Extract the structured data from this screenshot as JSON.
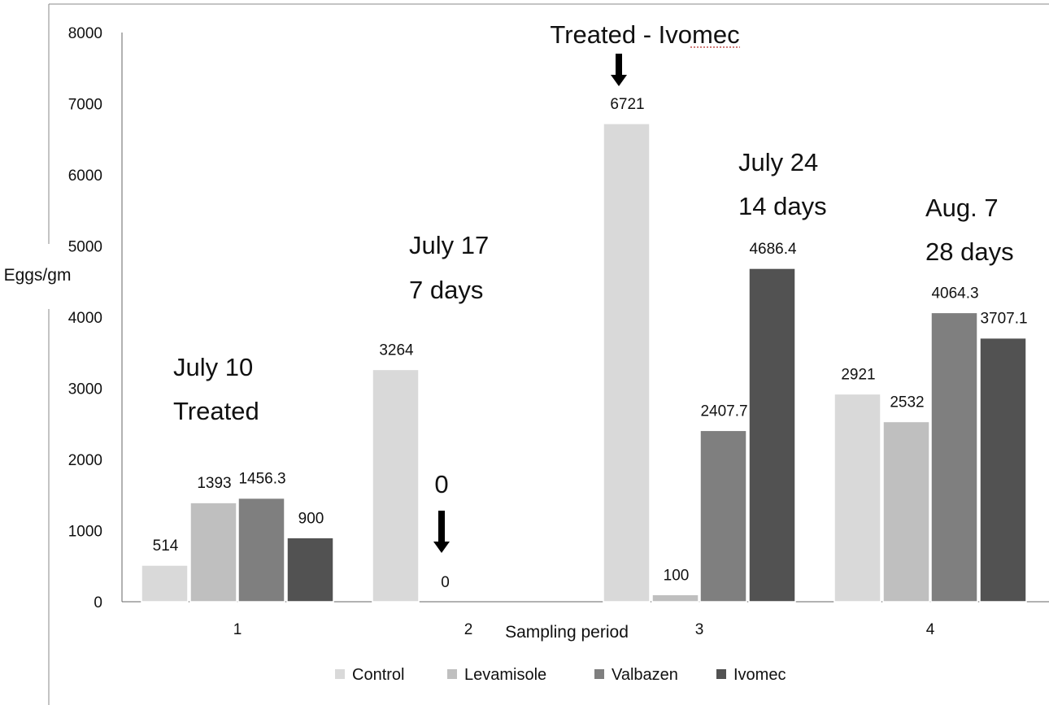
{
  "chart_data": {
    "type": "bar",
    "xlabel": "Sampling period",
    "ylabel": "Eggs/gm",
    "ylim": [
      0,
      8000
    ],
    "yticks": [
      0,
      1000,
      2000,
      3000,
      4000,
      5000,
      6000,
      7000,
      8000
    ],
    "categories": [
      "1",
      "2",
      "3",
      "4"
    ],
    "series": [
      {
        "name": "Control",
        "color": "#d9d9d9",
        "values": [
          514,
          3264,
          6721,
          2921
        ]
      },
      {
        "name": "Levamisole",
        "color": "#bfbfbf",
        "values": [
          1393,
          0,
          100,
          2532
        ]
      },
      {
        "name": "Valbazen",
        "color": "#7f7f7f",
        "values": [
          1456.3,
          null,
          2407.7,
          4064.3
        ]
      },
      {
        "name": "Ivomec",
        "color": "#525252",
        "values": [
          900,
          null,
          4686.4,
          3707.1
        ]
      }
    ],
    "data_labels": [
      [
        "514",
        "3264",
        "6721",
        "2921"
      ],
      [
        "1393",
        "0",
        "100",
        "2532"
      ],
      [
        "1456.3",
        "",
        "2407.7",
        "4064.3"
      ],
      [
        "900",
        "",
        "4686.4",
        "3707.1"
      ]
    ],
    "annotations": {
      "period1": [
        "July 10",
        "Treated"
      ],
      "period2": [
        "July 17",
        "7 days"
      ],
      "period2_zero": "0",
      "period3_top": "Treated - Ivomec",
      "period3": [
        "July 24",
        "14 days"
      ],
      "period4": [
        "Aug. 7",
        "28 days"
      ]
    },
    "legend_position": "bottom",
    "grid": false
  }
}
